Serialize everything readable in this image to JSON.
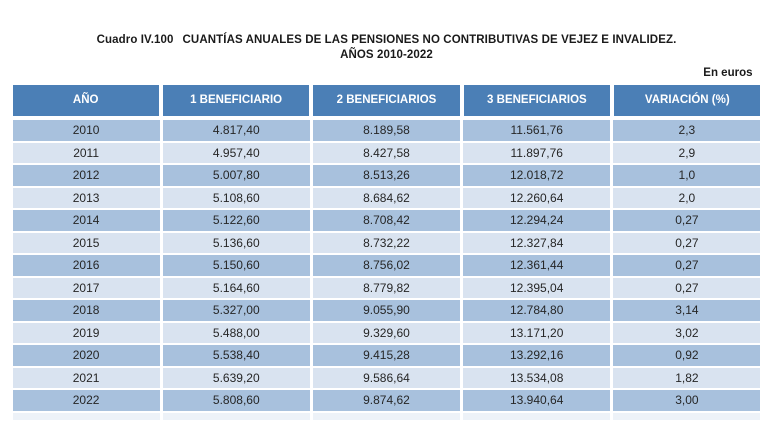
{
  "page": {
    "table_label": "Cuadro IV.100",
    "title_line1": "CUANTÍAS ANUALES DE LAS PENSIONES NO CONTRIBUTIVAS DE VEJEZ E INVALIDEZ.",
    "title_line2": "AÑOS 2010-2022",
    "unit_label": "En euros"
  },
  "colors": {
    "header_bg": "#4b7fb6",
    "header_text": "#ffffff",
    "row_dark": "#a8c1dd",
    "row_light": "#d9e3f0",
    "body_text": "#262626"
  },
  "chart_data": {
    "type": "table",
    "title": "Cuadro IV.100 CUANTÍAS ANUALES DE LAS PENSIONES NO CONTRIBUTIVAS DE VEJEZ E INVALIDEZ. AÑOS 2010-2022",
    "unit": "En euros",
    "columns": [
      "AÑO",
      "1 BENEFICIARIO",
      "2 BENEFICIARIOS",
      "3 BENEFICIARIOS",
      "VARIACIÓN (%)"
    ],
    "rows": [
      [
        "2010",
        "4.817,40",
        "8.189,58",
        "11.561,76",
        "2,3"
      ],
      [
        "2011",
        "4.957,40",
        "8.427,58",
        "11.897,76",
        "2,9"
      ],
      [
        "2012",
        "5.007,80",
        "8.513,26",
        "12.018,72",
        "1,0"
      ],
      [
        "2013",
        "5.108,60",
        "8.684,62",
        "12.260,64",
        "2,0"
      ],
      [
        "2014",
        "5.122,60",
        "8.708,42",
        "12.294,24",
        "0,27"
      ],
      [
        "2015",
        "5.136,60",
        "8.732,22",
        "12.327,84",
        "0,27"
      ],
      [
        "2016",
        "5.150,60",
        "8.756,02",
        "12.361,44",
        "0,27"
      ],
      [
        "2017",
        "5.164,60",
        "8.779,82",
        "12.395,04",
        "0,27"
      ],
      [
        "2018",
        "5.327,00",
        "9.055,90",
        "12.784,80",
        "3,14"
      ],
      [
        "2019",
        "5.488,00",
        "9.329,60",
        "13.171,20",
        "3,02"
      ],
      [
        "2020",
        "5.538,40",
        "9.415,28",
        "13.292,16",
        "0,92"
      ],
      [
        "2021",
        "5.639,20",
        "9.586,64",
        "13.534,08",
        "1,82"
      ],
      [
        "2022",
        "5.808,60",
        "9.874,62",
        "13.940,64",
        "3,00"
      ]
    ]
  }
}
